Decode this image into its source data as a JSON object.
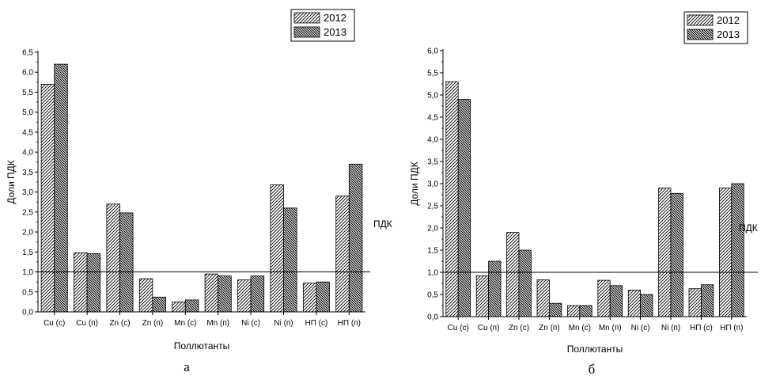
{
  "chart_data": [
    {
      "type": "bar",
      "caption": "а",
      "xlabel": "Поллютанты",
      "ylabel": "Доли ПДК",
      "ylim": [
        0,
        6.5
      ],
      "yticks": [
        "0,0",
        "0,5",
        "1,0",
        "1,5",
        "2,0",
        "2,5",
        "3,0",
        "3,5",
        "4,0",
        "4,5",
        "5,0",
        "5,5",
        "6,0",
        "6,5"
      ],
      "categories": [
        "Cu (c)",
        "Cu (п)",
        "Zn (c)",
        "Zn (п)",
        "Mn (c)",
        "Mn (п)",
        "Ni (c)",
        "Ni (п)",
        "НП (c)",
        "НП (п)"
      ],
      "series": [
        {
          "name": "2012",
          "values": [
            5.7,
            1.48,
            2.7,
            0.83,
            0.25,
            0.95,
            0.8,
            3.18,
            0.72,
            2.9
          ]
        },
        {
          "name": "2013",
          "values": [
            6.2,
            1.46,
            2.48,
            0.37,
            0.3,
            0.9,
            0.9,
            2.6,
            0.75,
            3.7
          ]
        }
      ],
      "reference_line": {
        "value": 1.0,
        "label": "ПДК"
      },
      "legend": "top-right"
    },
    {
      "type": "bar",
      "caption": "б",
      "xlabel": "Поллютанты",
      "ylabel": "Доли ПДК",
      "ylim": [
        0,
        6.0
      ],
      "yticks": [
        "0,0",
        "0,5",
        "1,0",
        "1,5",
        "2,0",
        "2,5",
        "3,0",
        "3,5",
        "4,0",
        "4,5",
        "5,0",
        "5,5",
        "6,0"
      ],
      "categories": [
        "Cu (c)",
        "Cu (п)",
        "Zn (c)",
        "Zn (п)",
        "Mn (c)",
        "Mn (п)",
        "Ni (c)",
        "Ni (п)",
        "НП (c)",
        "НП (п)"
      ],
      "series": [
        {
          "name": "2012",
          "values": [
            5.3,
            0.92,
            1.9,
            0.83,
            0.25,
            0.82,
            0.6,
            2.9,
            0.63,
            2.9
          ]
        },
        {
          "name": "2013",
          "values": [
            4.9,
            1.25,
            1.5,
            0.3,
            0.25,
            0.7,
            0.5,
            2.78,
            0.72,
            3.0
          ]
        }
      ],
      "reference_line": {
        "value": 1.0,
        "label": "ПДК"
      },
      "legend": "top-right"
    }
  ]
}
